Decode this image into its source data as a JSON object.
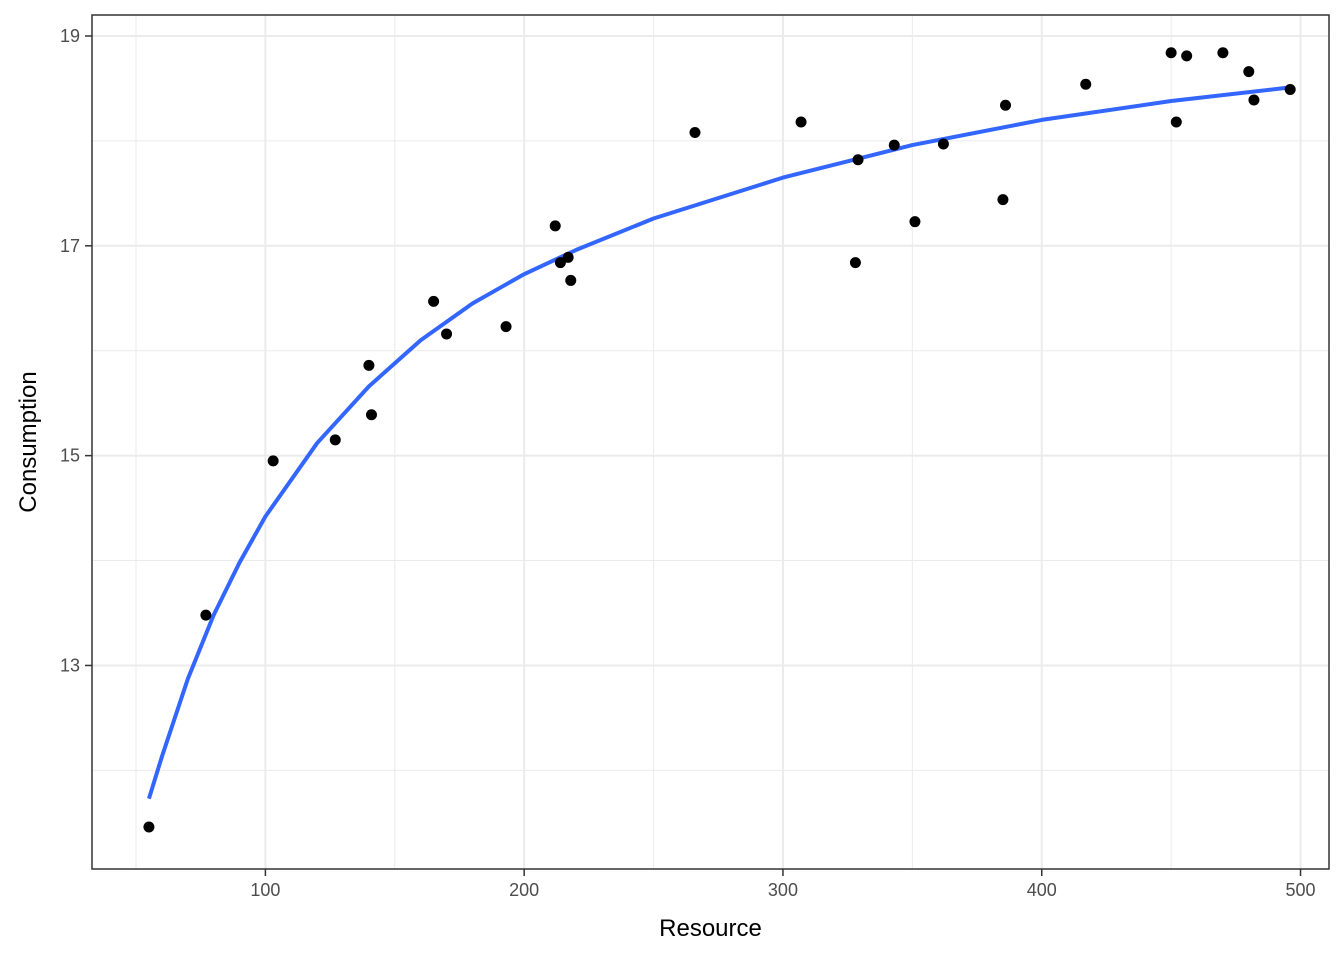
{
  "chart_data": {
    "type": "scatter",
    "xlabel": "Resource",
    "ylabel": "Consumption",
    "xlim": [
      33,
      511
    ],
    "ylim": [
      11.06,
      19.2
    ],
    "x_major_ticks": [
      100,
      200,
      300,
      400,
      500
    ],
    "x_minor_ticks": [
      50,
      150,
      250,
      350,
      450
    ],
    "y_major_ticks": [
      13,
      15,
      17,
      19
    ],
    "y_minor_ticks": [
      12,
      14,
      16,
      18
    ],
    "grid": true,
    "legend": "none",
    "colors": {
      "points": "#000000",
      "fit_line": "#3366FF",
      "grid": "#ebebeb",
      "panel_border": "#333333"
    },
    "series": [
      {
        "kind": "points",
        "x": [
          55,
          77,
          103,
          127,
          140,
          141,
          165,
          170,
          193,
          212,
          214,
          217,
          218,
          266,
          307,
          328,
          329,
          343,
          351,
          362,
          385,
          386,
          417,
          450,
          452,
          456,
          470,
          480,
          482,
          496
        ],
        "y": [
          11.46,
          13.48,
          14.95,
          15.15,
          15.86,
          15.39,
          16.47,
          16.16,
          16.23,
          17.19,
          16.84,
          16.89,
          16.67,
          18.08,
          18.18,
          16.84,
          17.82,
          17.96,
          17.23,
          17.97,
          17.44,
          18.34,
          18.54,
          18.84,
          18.18,
          18.81,
          18.84,
          18.66,
          18.39,
          18.49
        ]
      },
      {
        "kind": "fit_line",
        "x": [
          55,
          60,
          70,
          80,
          90,
          100,
          120,
          140,
          160,
          180,
          200,
          220,
          250,
          300,
          350,
          400,
          450,
          496
        ],
        "y": [
          11.73,
          12.13,
          12.87,
          13.48,
          13.98,
          14.42,
          15.12,
          15.66,
          16.1,
          16.45,
          16.73,
          16.96,
          17.26,
          17.65,
          17.96,
          18.2,
          18.38,
          18.51
        ]
      }
    ]
  }
}
